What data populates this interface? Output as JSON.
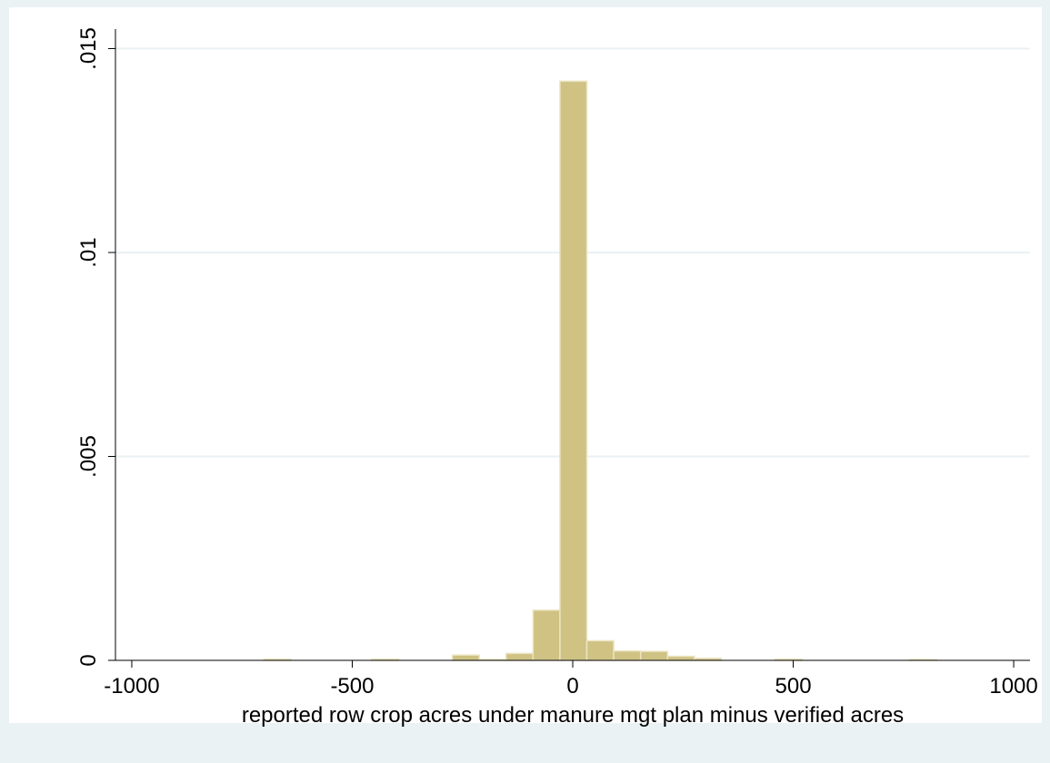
{
  "chart_data": {
    "type": "histogram",
    "xlabel": "reported row crop acres under manure mgt plan minus verified acres",
    "bins": [
      -700,
      -639,
      -578,
      -517,
      -456,
      -395,
      -334,
      -273,
      -212,
      -151,
      -90,
      -29,
      32,
      93,
      154,
      215,
      276,
      337,
      398,
      459,
      520,
      581,
      642,
      703,
      764,
      825
    ],
    "values": [
      3e-05,
      0,
      0,
      0,
      3e-05,
      0,
      0,
      0.00013,
      2e-05,
      0.00017,
      0.00123,
      0.0142,
      0.00048,
      0.00023,
      0.00022,
      0.0001,
      5e-05,
      0,
      0,
      3e-05,
      0,
      0,
      0,
      0,
      2e-05
    ],
    "color": "#cfc283",
    "xlim": [
      -1037,
      1037
    ],
    "ylim": [
      0,
      0.0153
    ],
    "xticks": [
      -1000,
      -500,
      0,
      500,
      1000
    ],
    "yticks": [
      {
        "value": 0,
        "label": "0"
      },
      {
        "value": 0.005,
        "label": ".005"
      },
      {
        "value": 0.01,
        "label": ".01"
      },
      {
        "value": 0.015,
        "label": ".015"
      }
    ],
    "grid": true
  }
}
